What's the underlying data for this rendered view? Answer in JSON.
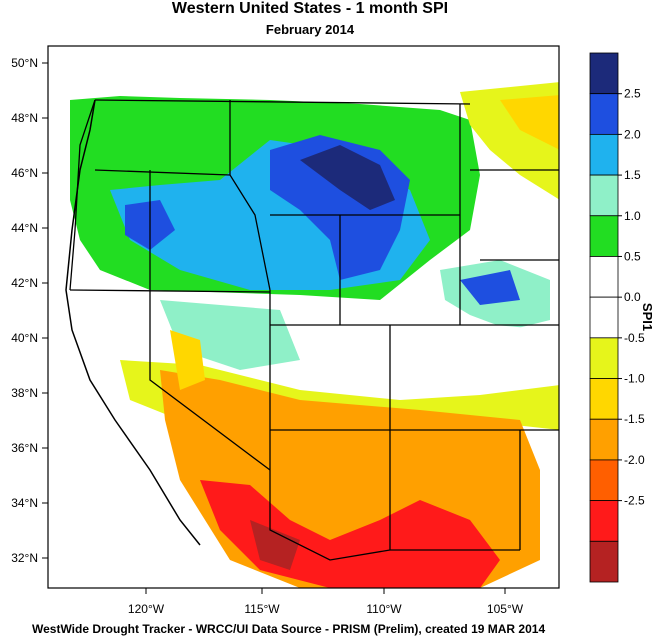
{
  "title": "Western United States - 1 month SPI",
  "subtitle": "February 2014",
  "footer": "WestWide Drought Tracker - WRCC/UI  Data Source - PRISM (Prelim), created 19 MAR 2014",
  "map": {
    "lat_labels": [
      "50°N",
      "48°N",
      "46°N",
      "44°N",
      "42°N",
      "40°N",
      "38°N",
      "36°N",
      "34°N",
      "32°N"
    ],
    "lon_labels": [
      "120°W",
      "115°W",
      "110°W",
      "105°W"
    ]
  },
  "colorbar": {
    "label": "SPI1",
    "tick_labels": [
      "2.5",
      "2.0",
      "1.5",
      "1.0",
      "0.5",
      "0.0",
      "-0.5",
      "-1.0",
      "-1.5",
      "-2.0",
      "-2.5"
    ],
    "colors": [
      "#1c2a7a",
      "#1e4fe0",
      "#1fb2ee",
      "#8ff0c8",
      "#22dd22",
      "#ffffff",
      "#ffffff",
      "#e6f51b",
      "#ffd700",
      "#ffa000",
      "#ff5f00",
      "#ff1a1a",
      "#b52222"
    ]
  },
  "regions": [
    {
      "name": "northern-rockies-wet",
      "color": "#1e4fe0"
    },
    {
      "name": "idaho-wet",
      "color": "#1fb2ee"
    },
    {
      "name": "pacific-northwest-wet",
      "color": "#22dd22"
    },
    {
      "name": "great-basin-neutral",
      "color": "#ffffff"
    },
    {
      "name": "california-moderate-dry",
      "color": "#ffa000"
    },
    {
      "name": "southwest-severe-dry",
      "color": "#ff1a1a"
    },
    {
      "name": "northern-plains-dry",
      "color": "#ffd700"
    }
  ]
}
